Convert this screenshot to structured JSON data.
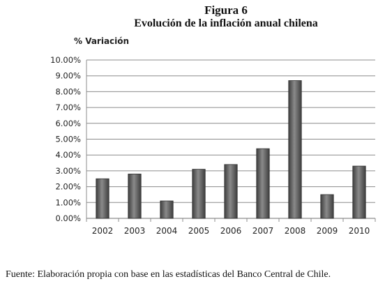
{
  "figure": {
    "label": "Figura 6",
    "title": "Evolución de la inflación anual chilena",
    "source": "Fuente: Elaboración propia con base en las estadísticas del Banco Central de Chile."
  },
  "chart_data": {
    "type": "bar",
    "title": "Evolución de la inflación anual chilena",
    "ylabel": "% Variación",
    "xlabel": "",
    "categories": [
      "2002",
      "2003",
      "2004",
      "2005",
      "2006",
      "2007",
      "2008",
      "2009",
      "2010"
    ],
    "values": [
      2.5,
      2.8,
      1.1,
      3.1,
      3.4,
      4.4,
      8.7,
      1.5,
      3.3
    ],
    "ylim": [
      0,
      10
    ],
    "yticks": [
      "0.00%",
      "1.00%",
      "2.00%",
      "3.00%",
      "4.00%",
      "5.00%",
      "6.00%",
      "7.00%",
      "8.00%",
      "9.00%",
      "10.00%"
    ],
    "grid": true,
    "legend": "none",
    "bar_color_top": "#8a8a8a",
    "bar_color_bottom": "#3e3e3e",
    "bar_edge": "#2e2e2e",
    "grid_color": "#8c8c8c"
  }
}
